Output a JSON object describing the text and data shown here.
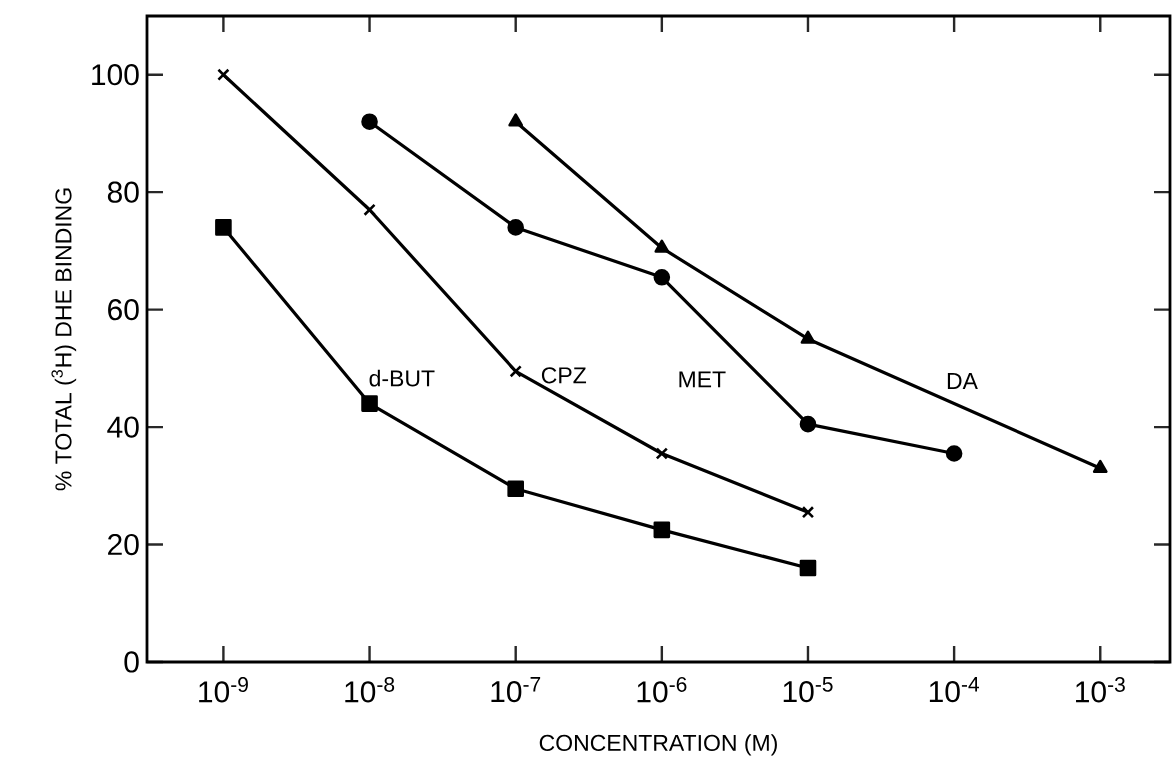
{
  "chart_data": {
    "type": "line",
    "xlabel": "CONCENTRATION (M)",
    "ylabel": "% TOTAL ($^{3}$H) DHE BINDING",
    "log": "x",
    "xlim": [
      3e-10,
      0.003
    ],
    "ylim": [
      0,
      110
    ],
    "xticks": [
      {
        "value": 1e-09,
        "label": "10$^{-9}$"
      },
      {
        "value": 1e-08,
        "label": "10$^{-8}$"
      },
      {
        "value": 1e-07,
        "label": "10$^{-7}$"
      },
      {
        "value": 1e-06,
        "label": "10$^{-6}$"
      },
      {
        "value": 1e-05,
        "label": "10$^{-5}$"
      },
      {
        "value": 0.0001,
        "label": "10$^{-4}$"
      },
      {
        "value": 0.001,
        "label": "10$^{-3}$"
      }
    ],
    "yticks": [
      0,
      20,
      40,
      60,
      80,
      100
    ],
    "grid": false,
    "line_style": "solid",
    "series": [
      {
        "name": "d-BUT",
        "color": "#000000",
        "marker": "square",
        "x": [
          1e-09,
          1e-08,
          1e-07,
          1e-06,
          1e-05
        ],
        "values": [
          74,
          44,
          29.5,
          22.5,
          16
        ]
      },
      {
        "name": "CPZ",
        "color": "#000000",
        "marker": "cross",
        "x": [
          1e-09,
          1e-08,
          1e-07,
          1e-06,
          1e-05
        ],
        "values": [
          100,
          77,
          49.5,
          35.5,
          25.5
        ]
      },
      {
        "name": "MET",
        "color": "#000000",
        "marker": "circle",
        "x": [
          1e-08,
          1e-07,
          1e-06,
          1e-05,
          0.0001
        ],
        "values": [
          92,
          74,
          65.5,
          40.5,
          35.5
        ]
      },
      {
        "name": "DA",
        "color": "#000000",
        "marker": "triangle",
        "x": [
          1e-07,
          1e-06,
          1e-05,
          0.001
        ],
        "values": [
          92,
          70.5,
          55,
          33
        ]
      }
    ]
  }
}
